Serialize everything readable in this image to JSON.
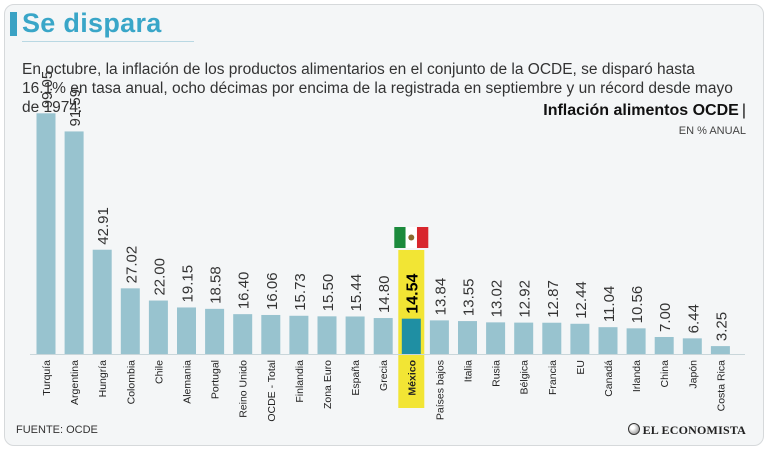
{
  "header": {
    "title": "Se dispara",
    "subtitle": "En octubre, la inflación de los productos alimentarios en el conjunto de la OCDE, se disparó hasta 16.1% en tasa anual, ocho décimas por encima de la registrada en septiembre y un récord desde mayo de 1974."
  },
  "chart_heading": {
    "title": "Inflación alimentos OCDE",
    "pipe": "|",
    "unit": "EN % ANUAL"
  },
  "colors": {
    "bar": "#98c3cf",
    "highlight_bar": "#1f8fa3",
    "highlight_band": "#f2e534",
    "title": "#39a6c8"
  },
  "chart_data": {
    "type": "bar",
    "title": "Inflación alimentos OCDE",
    "ylabel": "EN % ANUAL",
    "ylim": [
      0,
      100
    ],
    "highlight": "México",
    "categories": [
      "Turquía",
      "Argentina",
      "Hungría",
      "Colombia",
      "Chile",
      "Alemania",
      "Portugal",
      "Reino Unido",
      "OCDE - Total",
      "Finlandia",
      "Zona Euro",
      "España",
      "Grecia",
      "México",
      "Países bajos",
      "Italia",
      "Rusia",
      "Bélgica",
      "Francia",
      "EU",
      "Canadá",
      "Irlanda",
      "China",
      "Japón",
      "Costa Rica"
    ],
    "values": [
      99.05,
      91.59,
      42.91,
      27.02,
      22.0,
      19.15,
      18.58,
      16.4,
      16.06,
      15.73,
      15.5,
      15.44,
      14.8,
      14.54,
      13.84,
      13.55,
      13.02,
      12.92,
      12.87,
      12.44,
      11.04,
      10.56,
      7.0,
      6.44,
      3.25
    ],
    "labels": [
      "99.05",
      "91.59",
      "42.91",
      "27.02",
      "22.00",
      "19.15",
      "18.58",
      "16.40",
      "16.06",
      "15.73",
      "15.50",
      "15.44",
      "14.80",
      "14.54",
      "13.84",
      "13.55",
      "13.02",
      "12.92",
      "12.87",
      "12.44",
      "11.04",
      "10.56",
      "7.00",
      "6.44",
      "3.25"
    ]
  },
  "footer": {
    "source": "FUENTE:  OCDE",
    "brand": "EL ECONOMISTA"
  }
}
